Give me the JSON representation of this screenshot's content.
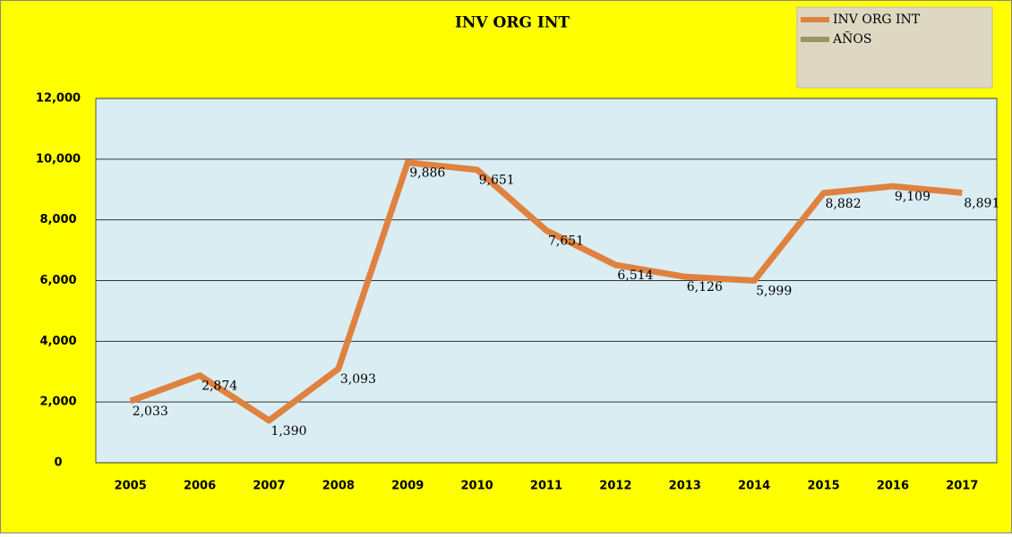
{
  "chart_data": {
    "type": "line",
    "title": "INV ORG INT",
    "categories": [
      "2005",
      "2006",
      "2007",
      "2008",
      "2009",
      "2010",
      "2011",
      "2012",
      "2013",
      "2014",
      "2015",
      "2016",
      "2017"
    ],
    "series": [
      {
        "name": "INV ORG INT",
        "color": "#e0823f",
        "values": [
          2033,
          2874,
          1390,
          3093,
          9886,
          9651,
          7651,
          6514,
          6126,
          5999,
          8882,
          9109,
          8891
        ],
        "value_labels": [
          "2,033",
          "2,874",
          "1,390",
          "3,093",
          "9,886",
          "9,651",
          "7,651",
          "6,514",
          "6,126",
          "5,999",
          "8,882",
          "9,109",
          "8,891"
        ]
      },
      {
        "name": "AÑOS",
        "color": "#9a9462",
        "values": [
          null,
          null,
          null,
          null,
          null,
          null,
          null,
          null,
          null,
          null,
          null,
          null,
          null
        ]
      }
    ],
    "ylim": [
      0,
      12000
    ],
    "yticks": [
      0,
      {
        "value": 2000,
        "label": "2,000"
      },
      {
        "value": 4000,
        "label": "4,000"
      },
      {
        "value": 6000,
        "label": "6,000"
      },
      {
        "value": 8000,
        "label": "8,000"
      },
      {
        "value": 10000,
        "label": "10,000"
      },
      {
        "value": 12000,
        "label": "12,000"
      }
    ],
    "grid": true,
    "legend": "top-right"
  }
}
